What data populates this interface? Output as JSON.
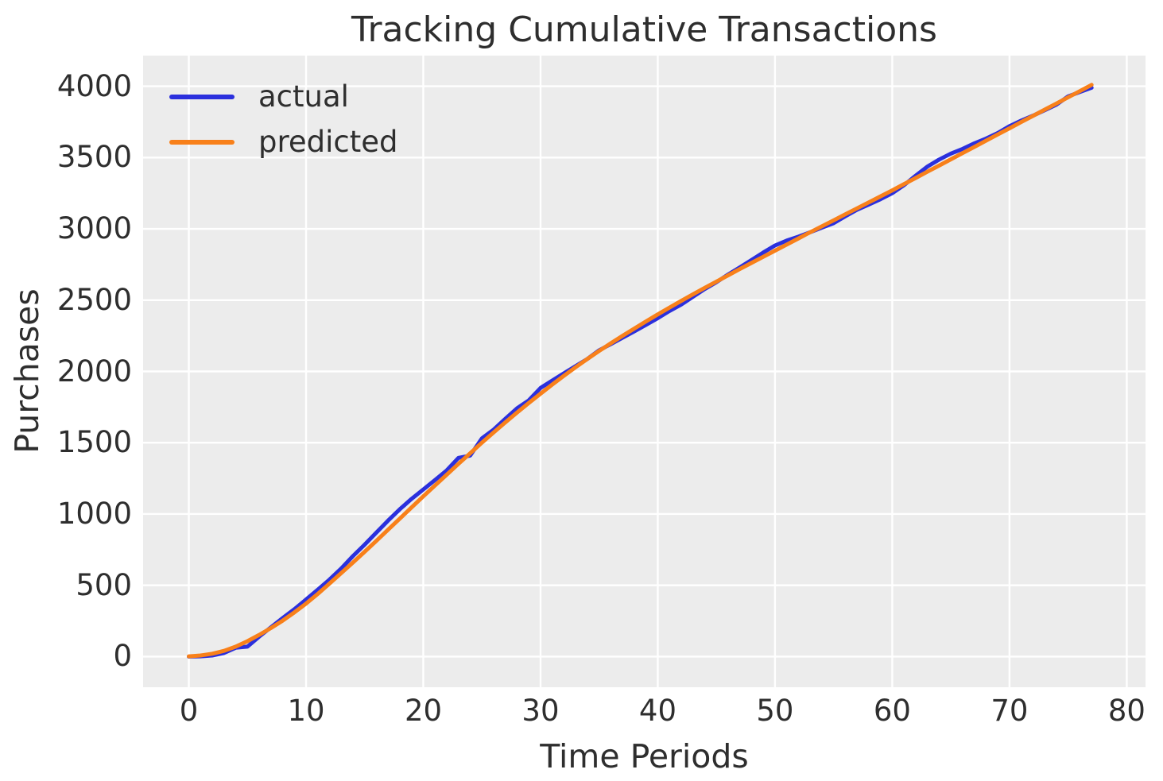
{
  "figure": {
    "background_color": "#ffffff",
    "axes_background_color": "#ececec",
    "grid_color": "#ffffff",
    "text_color": "#2e2e2e"
  },
  "chart_data": {
    "type": "line",
    "title": "Tracking Cumulative Transactions",
    "xlabel": "Time Periods",
    "ylabel": "Purchases",
    "xlim": [
      -3.9,
      81.6
    ],
    "ylim": [
      -215,
      4215
    ],
    "xticks": [
      0,
      10,
      20,
      30,
      40,
      50,
      60,
      70,
      80
    ],
    "yticks": [
      0,
      500,
      1000,
      1500,
      2000,
      2500,
      3000,
      3500,
      4000
    ],
    "grid": true,
    "legend_position": "upper-left",
    "x": [
      0,
      1,
      2,
      3,
      4,
      5,
      6,
      7,
      8,
      9,
      10,
      11,
      12,
      13,
      14,
      15,
      16,
      17,
      18,
      19,
      20,
      21,
      22,
      23,
      24,
      25,
      26,
      27,
      28,
      29,
      30,
      31,
      32,
      33,
      34,
      35,
      36,
      37,
      38,
      39,
      40,
      41,
      42,
      43,
      44,
      45,
      46,
      47,
      48,
      49,
      50,
      51,
      52,
      53,
      54,
      55,
      56,
      57,
      58,
      59,
      60,
      61,
      62,
      63,
      64,
      65,
      66,
      67,
      68,
      69,
      70,
      71,
      72,
      73,
      74,
      75,
      76,
      77
    ],
    "series": [
      {
        "name": "actual",
        "color": "#2b30dd",
        "values": [
          0,
          2,
          8,
          25,
          62,
          70,
          140,
          205,
          270,
          332,
          400,
          470,
          540,
          618,
          705,
          785,
          870,
          954,
          1034,
          1106,
          1172,
          1238,
          1306,
          1394,
          1410,
          1530,
          1592,
          1668,
          1742,
          1797,
          1884,
          1936,
          1988,
          2038,
          2088,
          2148,
          2192,
          2236,
          2281,
          2327,
          2374,
          2424,
          2469,
          2523,
          2578,
          2626,
          2680,
          2730,
          2781,
          2834,
          2883,
          2918,
          2945,
          2976,
          3008,
          3040,
          3088,
          3134,
          3170,
          3208,
          3250,
          3306,
          3373,
          3437,
          3486,
          3528,
          3561,
          3600,
          3633,
          3672,
          3720,
          3759,
          3794,
          3832,
          3871,
          3929,
          3960,
          3990
        ]
      },
      {
        "name": "predicted",
        "color": "#f8801a",
        "values": [
          2,
          8,
          20,
          40,
          70,
          108,
          152,
          200,
          252,
          310,
          372,
          440,
          512,
          586,
          660,
          735,
          812,
          890,
          968,
          1046,
          1124,
          1200,
          1276,
          1352,
          1426,
          1500,
          1572,
          1643,
          1712,
          1779,
          1844,
          1908,
          1970,
          2030,
          2088,
          2144,
          2198,
          2250,
          2301,
          2351,
          2400,
          2448,
          2495,
          2541,
          2586,
          2630,
          2674,
          2718,
          2761,
          2804,
          2847,
          2890,
          2933,
          2976,
          3018,
          3060,
          3102,
          3144,
          3186,
          3228,
          3270,
          3314,
          3357,
          3401,
          3444,
          3488,
          3531,
          3575,
          3618,
          3662,
          3705,
          3749,
          3792,
          3836,
          3879,
          3923,
          3966,
          4010
        ]
      }
    ]
  }
}
